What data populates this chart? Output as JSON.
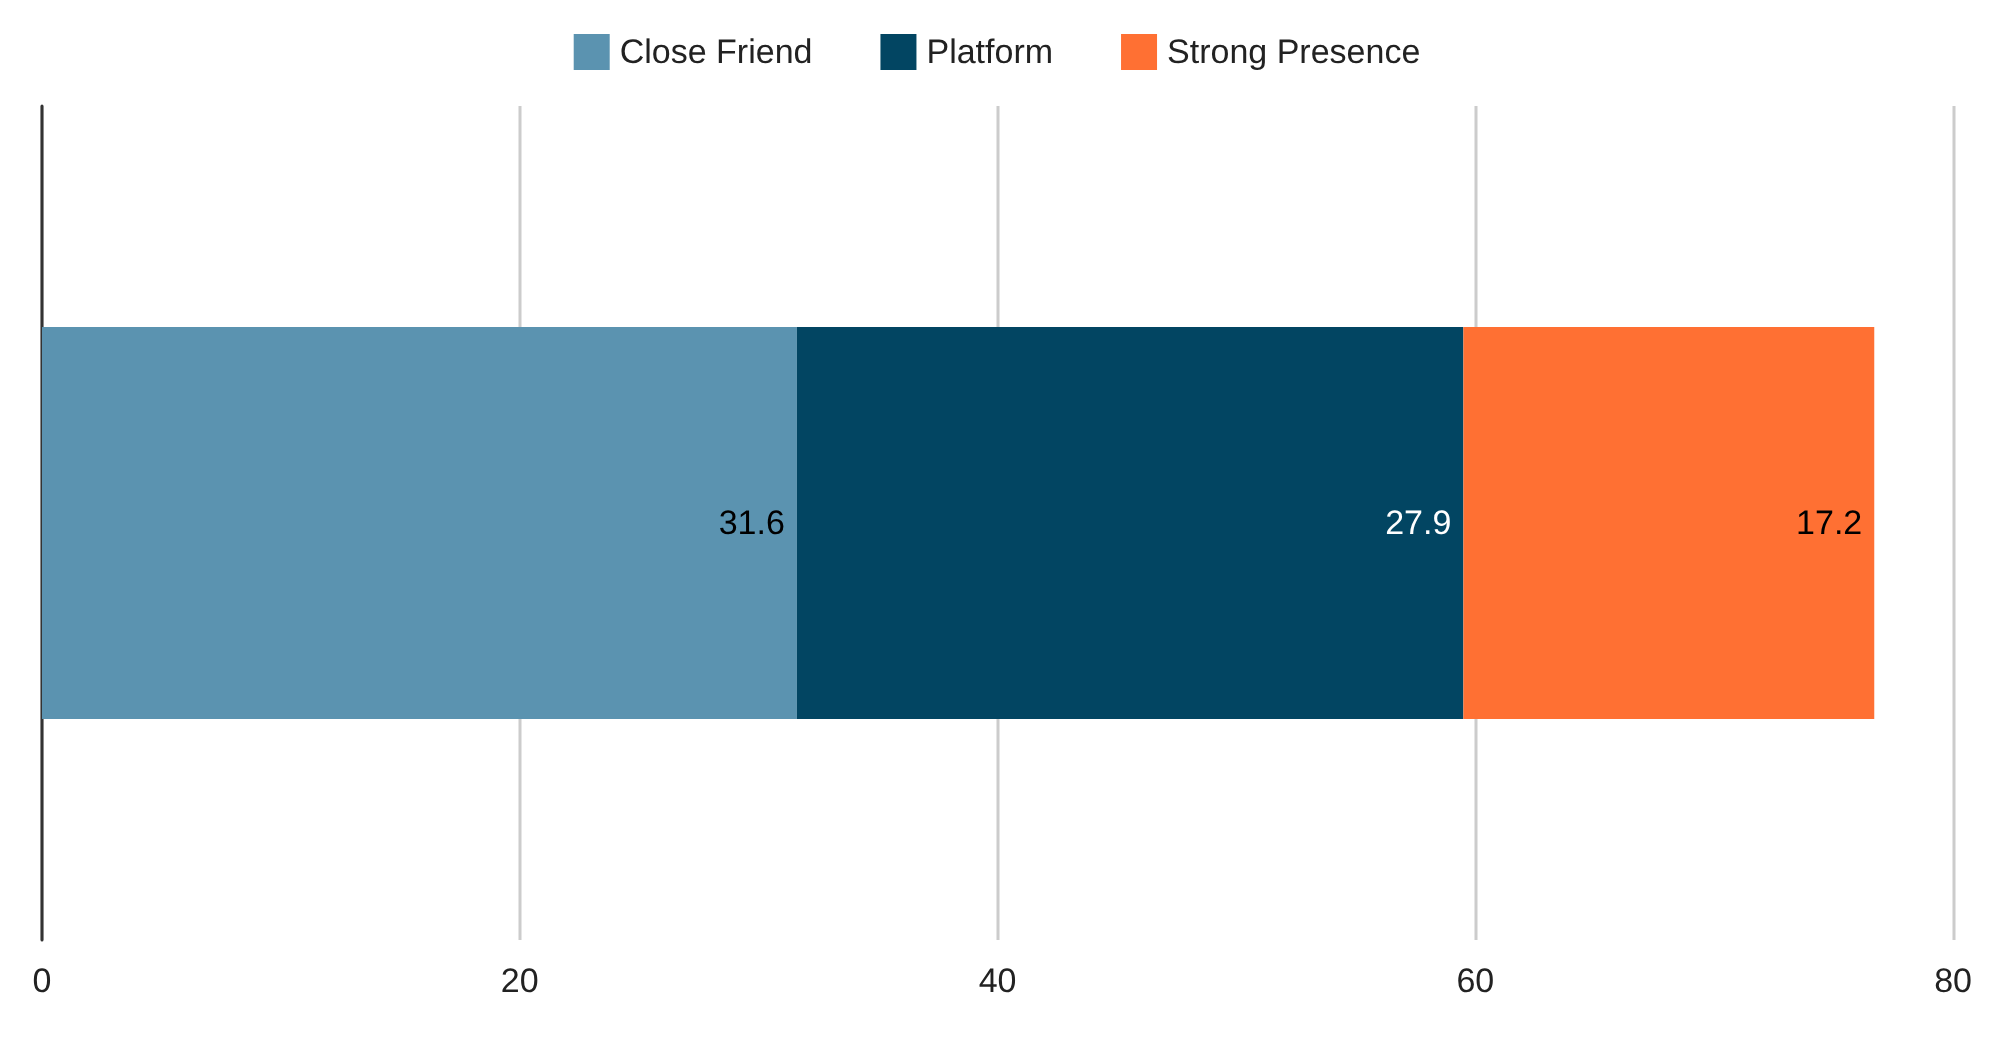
{
  "chart_data": {
    "type": "bar",
    "orientation": "horizontal",
    "stacked": true,
    "categories": [
      null
    ],
    "series": [
      {
        "name": "Close Friend",
        "color": "#5b93b0",
        "values": [
          31.6
        ]
      },
      {
        "name": "Platform",
        "color": "#024562",
        "values": [
          27.9
        ]
      },
      {
        "name": "Strong Presence",
        "color": "#ff7033",
        "values": [
          17.2
        ]
      }
    ],
    "xlim": [
      0,
      80
    ],
    "xticks": [
      0,
      20,
      40,
      60,
      80
    ],
    "grid": "x",
    "legend": "top",
    "data_labels": true
  }
}
